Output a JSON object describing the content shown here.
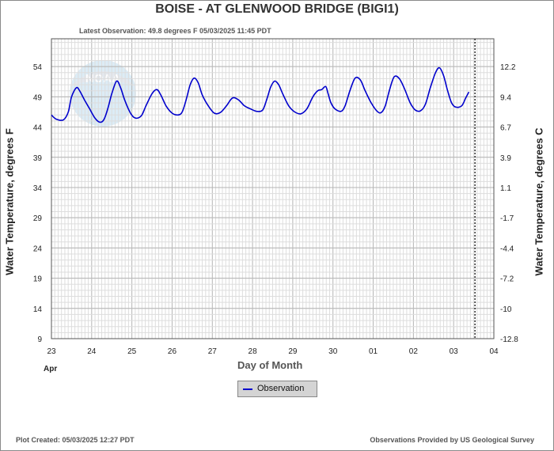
{
  "title": "BOISE - AT GLENWOOD BRIDGE  (BIGI1)",
  "latest_observation": "Latest Observation: 49.8 degrees F 05/03/2025 11:45 PDT",
  "footer": {
    "plot_created": "Plot Created: 05/03/2025 12:27 PDT",
    "provided_by": "Observations Provided by US Geological Survey"
  },
  "legend": {
    "observation_label": "Observation",
    "observation_color": "#0000cc"
  },
  "logo": {
    "text": "NOAA"
  },
  "chart_data": {
    "type": "line",
    "title": "BOISE - AT GLENWOOD BRIDGE  (BIGI1)",
    "xlabel": "Day of Month",
    "month_label": "Apr",
    "ylabel_left": "Water Temperature, degrees F",
    "ylabel_right": "Water Temperature, degrees C",
    "x_ticks": [
      "23",
      "24",
      "25",
      "26",
      "27",
      "28",
      "29",
      "30",
      "01",
      "02",
      "03",
      "04"
    ],
    "xlim": [
      0,
      11
    ],
    "y_ticks_f": [
      9,
      14,
      19,
      24,
      29,
      34,
      39,
      44,
      49,
      54
    ],
    "ylim_f": [
      9,
      58.6
    ],
    "y_ticks_c": [
      "-12.8",
      "-10",
      "-7.2",
      "-4.4",
      "-1.7",
      "1.1",
      "3.9",
      "6.7",
      "9.4",
      "12.2"
    ],
    "grid": true,
    "current_time_marker": 10.53,
    "series": [
      {
        "name": "Observation",
        "color": "#0000cc",
        "points": [
          [
            0.0,
            46.0
          ],
          [
            0.12,
            45.3
          ],
          [
            0.3,
            45.2
          ],
          [
            0.42,
            46.5
          ],
          [
            0.5,
            49.0
          ],
          [
            0.62,
            50.5
          ],
          [
            0.7,
            50.0
          ],
          [
            0.82,
            48.5
          ],
          [
            0.95,
            47.0
          ],
          [
            1.08,
            45.5
          ],
          [
            1.2,
            44.8
          ],
          [
            1.3,
            45.2
          ],
          [
            1.4,
            47.0
          ],
          [
            1.5,
            49.5
          ],
          [
            1.62,
            51.6
          ],
          [
            1.72,
            50.5
          ],
          [
            1.82,
            48.5
          ],
          [
            1.95,
            46.5
          ],
          [
            2.05,
            45.6
          ],
          [
            2.15,
            45.5
          ],
          [
            2.25,
            46.0
          ],
          [
            2.35,
            47.5
          ],
          [
            2.5,
            49.5
          ],
          [
            2.62,
            50.2
          ],
          [
            2.72,
            49.3
          ],
          [
            2.85,
            47.5
          ],
          [
            3.0,
            46.3
          ],
          [
            3.15,
            46.0
          ],
          [
            3.25,
            46.5
          ],
          [
            3.35,
            48.5
          ],
          [
            3.45,
            51.0
          ],
          [
            3.55,
            52.1
          ],
          [
            3.65,
            51.3
          ],
          [
            3.75,
            49.3
          ],
          [
            3.9,
            47.5
          ],
          [
            4.05,
            46.3
          ],
          [
            4.2,
            46.4
          ],
          [
            4.35,
            47.5
          ],
          [
            4.5,
            48.8
          ],
          [
            4.65,
            48.5
          ],
          [
            4.8,
            47.5
          ],
          [
            4.95,
            47.0
          ],
          [
            5.1,
            46.6
          ],
          [
            5.25,
            46.8
          ],
          [
            5.35,
            48.5
          ],
          [
            5.45,
            50.6
          ],
          [
            5.55,
            51.6
          ],
          [
            5.65,
            51.0
          ],
          [
            5.75,
            49.5
          ],
          [
            5.9,
            47.5
          ],
          [
            6.05,
            46.5
          ],
          [
            6.2,
            46.2
          ],
          [
            6.35,
            47.0
          ],
          [
            6.5,
            49.0
          ],
          [
            6.62,
            50.0
          ],
          [
            6.72,
            50.2
          ],
          [
            6.82,
            50.7
          ],
          [
            6.88,
            49.5
          ],
          [
            6.95,
            48.0
          ],
          [
            7.05,
            47.0
          ],
          [
            7.2,
            46.6
          ],
          [
            7.3,
            47.5
          ],
          [
            7.42,
            50.0
          ],
          [
            7.55,
            52.1
          ],
          [
            7.68,
            51.8
          ],
          [
            7.8,
            50.0
          ],
          [
            7.95,
            48.0
          ],
          [
            8.1,
            46.6
          ],
          [
            8.2,
            46.4
          ],
          [
            8.3,
            47.5
          ],
          [
            8.4,
            50.0
          ],
          [
            8.52,
            52.3
          ],
          [
            8.65,
            52.0
          ],
          [
            8.78,
            50.3
          ],
          [
            8.92,
            48.0
          ],
          [
            9.05,
            46.8
          ],
          [
            9.18,
            46.7
          ],
          [
            9.3,
            47.8
          ],
          [
            9.42,
            50.5
          ],
          [
            9.55,
            53.0
          ],
          [
            9.65,
            53.8
          ],
          [
            9.75,
            52.5
          ],
          [
            9.85,
            50.0
          ],
          [
            9.95,
            48.0
          ],
          [
            10.05,
            47.3
          ],
          [
            10.2,
            47.5
          ],
          [
            10.3,
            48.8
          ],
          [
            10.38,
            49.8
          ]
        ]
      }
    ]
  }
}
